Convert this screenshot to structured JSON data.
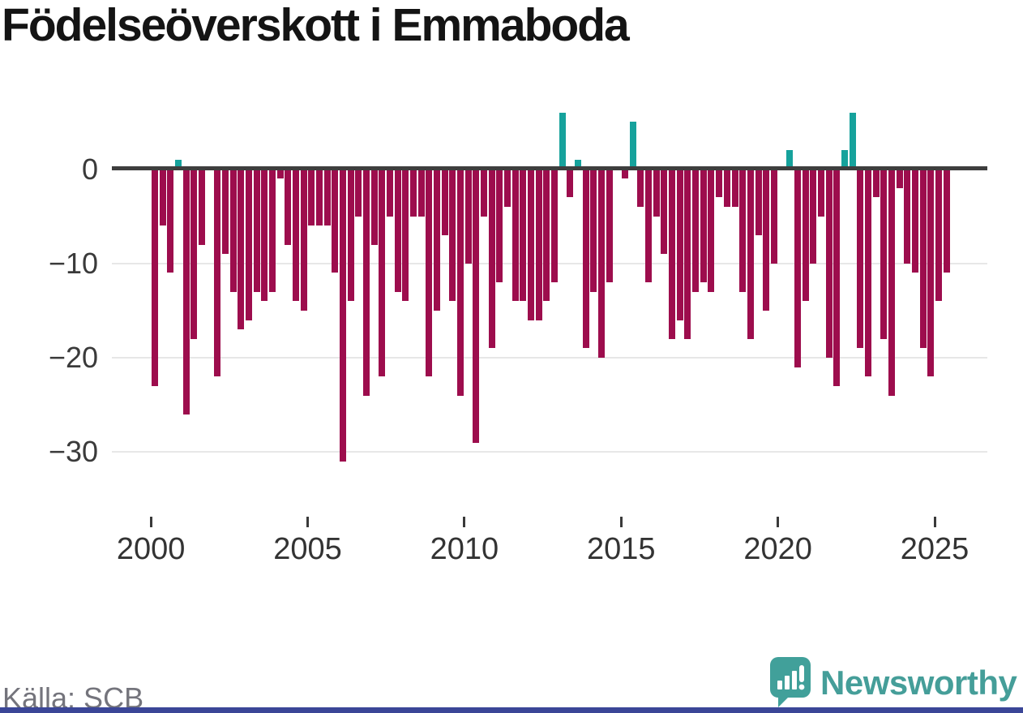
{
  "title": "Födelseöverskott i Emmaboda",
  "source": "Källa: SCB",
  "branding": {
    "name": "Newsworthy"
  },
  "colors": {
    "negative_bar": "#9d0d4d",
    "positive_bar": "#16a29c",
    "axis": "#3e3e3e",
    "grid": "#e7e7e7",
    "tick_text": "#3a3a3a",
    "source_text": "#74747c",
    "brand_teal": "#459e99",
    "footer_strip": "#3b4697"
  },
  "chart_data": {
    "type": "bar",
    "title": "Födelseöverskott i Emmaboda",
    "unit_interval": "quarter",
    "start": "2000 Q1",
    "end": "2025 Q2",
    "xlabel": "",
    "ylabel": "",
    "grid": "horizontal",
    "values_by_year": {
      "2000": [
        -23,
        -6,
        -11,
        1
      ],
      "2001": [
        -26,
        -18,
        -8,
        0
      ],
      "2002": [
        -22,
        -9,
        -13,
        -17
      ],
      "2003": [
        -16,
        -13,
        -14,
        -13
      ],
      "2004": [
        -1,
        -8,
        -14,
        -15
      ],
      "2005": [
        -6,
        -6,
        -6,
        -11
      ],
      "2006": [
        -31,
        -14,
        -5,
        -24
      ],
      "2007": [
        -8,
        -22,
        -5,
        -13
      ],
      "2008": [
        -14,
        -5,
        -5,
        -22
      ],
      "2009": [
        -15,
        -7,
        -14,
        -24
      ],
      "2010": [
        -10,
        -29,
        -5,
        -19
      ],
      "2011": [
        -12,
        -4,
        -14,
        -14
      ],
      "2012": [
        -16,
        -16,
        -14,
        -12
      ],
      "2013": [
        6,
        -3,
        1,
        -19
      ],
      "2014": [
        -13,
        -20,
        -12,
        0
      ],
      "2015": [
        -1,
        5,
        -4,
        -12
      ],
      "2016": [
        -5,
        -9,
        -18,
        -16
      ],
      "2017": [
        -18,
        -13,
        -12,
        -13
      ],
      "2018": [
        -3,
        -4,
        -4,
        -13
      ],
      "2019": [
        -18,
        -7,
        -15,
        -10
      ],
      "2020": [
        0,
        2,
        -21,
        -14
      ],
      "2021": [
        -10,
        -5,
        -20,
        -23
      ],
      "2022": [
        2,
        6,
        -19,
        -22
      ],
      "2023": [
        -3,
        -18,
        -24,
        -2
      ],
      "2024": [
        -10,
        -11,
        -19,
        -22
      ],
      "2025": [
        -14,
        -11
      ]
    },
    "y_axis": {
      "ticks": [
        0,
        -10,
        -20,
        -30
      ],
      "labels": [
        "0",
        "−10",
        "−20",
        "−30"
      ],
      "range": [
        -33,
        7
      ]
    },
    "x_axis": {
      "tick_years": [
        "2000",
        "2005",
        "2010",
        "2015",
        "2020",
        "2025"
      ]
    }
  }
}
